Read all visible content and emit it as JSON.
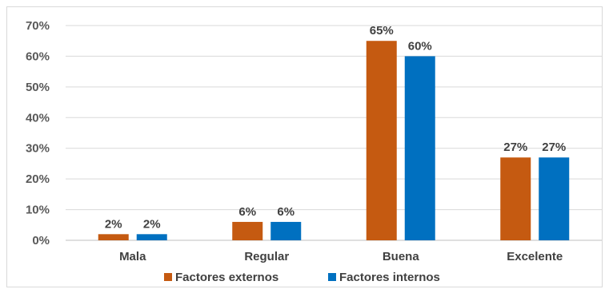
{
  "chart_data": {
    "type": "bar",
    "categories": [
      "Mala",
      "Regular",
      "Buena",
      "Excelente"
    ],
    "series": [
      {
        "name": "Factores externos",
        "values": [
          2,
          6,
          65,
          27
        ],
        "color": "#C55A11"
      },
      {
        "name": "Factores internos",
        "values": [
          2,
          6,
          60,
          27
        ],
        "color": "#0070C0"
      }
    ],
    "ylim": [
      0,
      70
    ],
    "yticks": [
      0,
      10,
      20,
      30,
      40,
      50,
      60,
      70
    ],
    "value_suffix": "%",
    "grid": true,
    "legend_position": "bottom",
    "title": "",
    "xlabel": "",
    "ylabel": ""
  }
}
